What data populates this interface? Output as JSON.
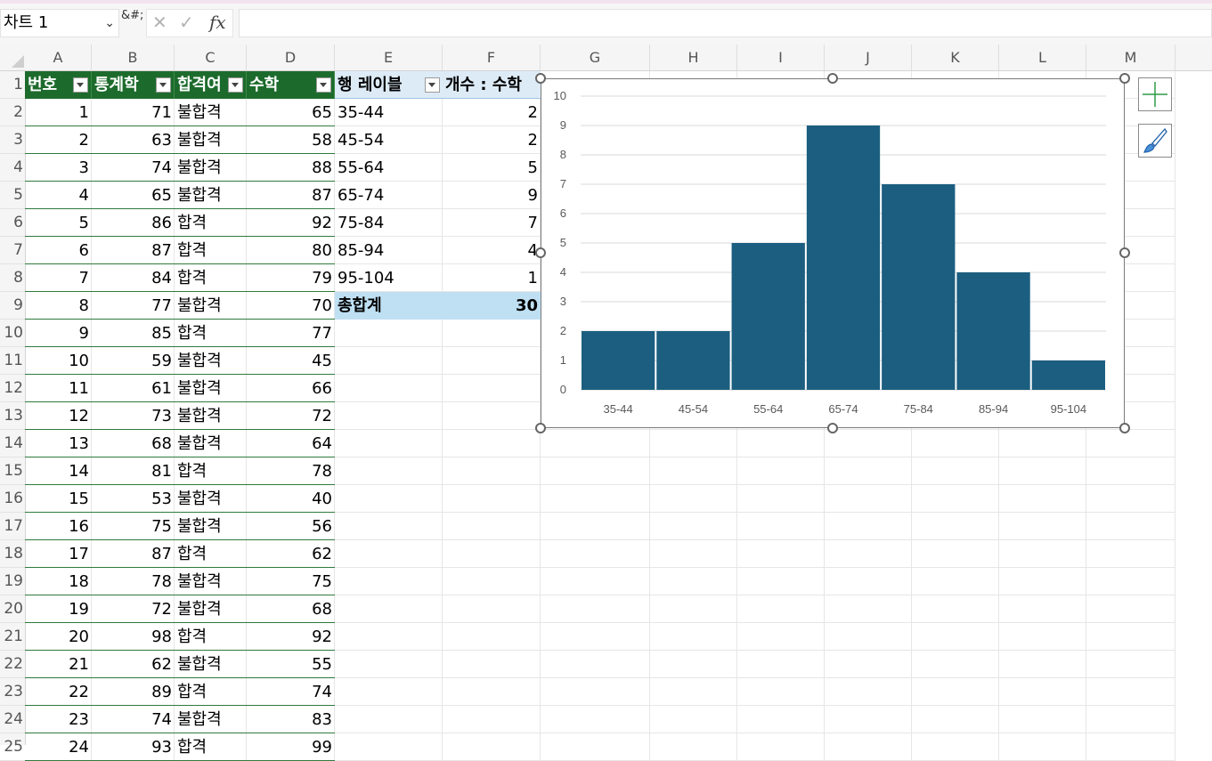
{
  "formula_bar": {
    "name_box": "차트 1",
    "dots": "&#;",
    "cancel_icon": "x-icon",
    "enter_icon": "check-icon",
    "fx_label": "fx",
    "formula_value": ""
  },
  "columns": [
    "A",
    "B",
    "C",
    "D",
    "E",
    "F",
    "G",
    "H",
    "I",
    "J",
    "K",
    "L",
    "M"
  ],
  "rows": [
    "1",
    "2",
    "3",
    "4",
    "5",
    "6",
    "7",
    "8",
    "9",
    "10",
    "11",
    "12",
    "13",
    "14",
    "15",
    "16",
    "17",
    "18",
    "19",
    "20",
    "21",
    "22",
    "23",
    "24",
    "25"
  ],
  "table": {
    "headers": [
      "번호",
      "통계학",
      "합격여",
      "수학"
    ],
    "rows": [
      [
        "1",
        "71",
        "불합격",
        "65"
      ],
      [
        "2",
        "63",
        "불합격",
        "58"
      ],
      [
        "3",
        "74",
        "불합격",
        "88"
      ],
      [
        "4",
        "65",
        "불합격",
        "87"
      ],
      [
        "5",
        "86",
        "합격",
        "92"
      ],
      [
        "6",
        "87",
        "합격",
        "80"
      ],
      [
        "7",
        "84",
        "합격",
        "79"
      ],
      [
        "8",
        "77",
        "불합격",
        "70"
      ],
      [
        "9",
        "85",
        "합격",
        "77"
      ],
      [
        "10",
        "59",
        "불합격",
        "45"
      ],
      [
        "11",
        "61",
        "불합격",
        "66"
      ],
      [
        "12",
        "73",
        "불합격",
        "72"
      ],
      [
        "13",
        "68",
        "불합격",
        "64"
      ],
      [
        "14",
        "81",
        "합격",
        "78"
      ],
      [
        "15",
        "53",
        "불합격",
        "40"
      ],
      [
        "16",
        "75",
        "불합격",
        "56"
      ],
      [
        "17",
        "87",
        "합격",
        "62"
      ],
      [
        "18",
        "78",
        "불합격",
        "75"
      ],
      [
        "19",
        "72",
        "불합격",
        "68"
      ],
      [
        "20",
        "98",
        "합격",
        "92"
      ],
      [
        "21",
        "62",
        "불합격",
        "55"
      ],
      [
        "22",
        "89",
        "합격",
        "74"
      ],
      [
        "23",
        "74",
        "불합격",
        "83"
      ],
      [
        "24",
        "93",
        "합격",
        "99"
      ]
    ]
  },
  "pivot": {
    "row_label_header": "행 레이블",
    "value_header": "개수 : 수학",
    "rows": [
      [
        "35-44",
        "2"
      ],
      [
        "45-54",
        "2"
      ],
      [
        "55-64",
        "5"
      ],
      [
        "65-74",
        "9"
      ],
      [
        "75-84",
        "7"
      ],
      [
        "85-94",
        "4"
      ],
      [
        "95-104",
        "1"
      ]
    ],
    "total_label": "총합계",
    "total_value": "30"
  },
  "chart_data": {
    "type": "bar",
    "categories": [
      "35-44",
      "45-54",
      "55-64",
      "65-74",
      "75-84",
      "85-94",
      "95-104"
    ],
    "values": [
      2,
      2,
      5,
      9,
      7,
      4,
      1
    ],
    "ylim": [
      0,
      10
    ],
    "yticks": [
      "0",
      "1",
      "2",
      "3",
      "4",
      "5",
      "6",
      "7",
      "8",
      "9",
      "10"
    ],
    "title": "",
    "xlabel": "",
    "ylabel": "",
    "grid": true,
    "legend": "none",
    "bar_color": "#1b5e80"
  },
  "chart_tools": {
    "elements_icon": "plus-icon",
    "styles_icon": "brush-icon"
  }
}
